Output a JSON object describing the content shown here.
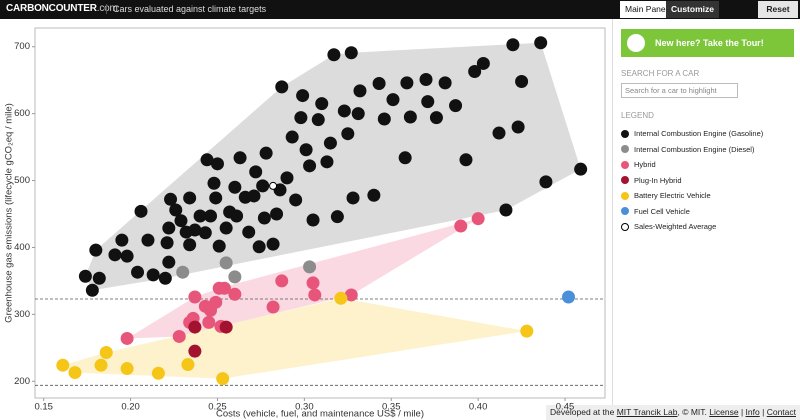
{
  "header": {
    "logo": "CARBONCOUNTER",
    "logo_suffix": ".com",
    "tagline": "Cars evaluated against climate targets"
  },
  "tabs": [
    "Main Panel",
    "Customize"
  ],
  "reset": "Reset",
  "tour_button": "New here? Take the Tour!",
  "search": {
    "label": "SEARCH FOR A CAR",
    "placeholder": "Search for a car to highlight"
  },
  "legend_title": "LEGEND",
  "footer": [
    "Developed at the",
    "MIT Trancik Lab",
    ", © MIT.",
    "License",
    "|",
    "Info",
    "|",
    "Contact"
  ],
  "chart_data": {
    "type": "scatter",
    "x_label": "Costs (vehicle, fuel, and maintenance US$ / mile)",
    "y_label": "Greenhouse gas emissions (lifecycle gCO₂eq / mile)",
    "xlim": [
      0.145,
      0.473
    ],
    "ylim": [
      175,
      728
    ],
    "xticks": [
      0.15,
      {
        "value": 0.2,
        "label": "0.20"
      },
      0.25,
      {
        "value": 0.3,
        "label": "0.30"
      },
      0.35,
      {
        "value": 0.4,
        "label": "0.40"
      },
      0.45
    ],
    "yticks": [
      200,
      300,
      400,
      500,
      600,
      700
    ],
    "hlines": [
      323,
      194
    ],
    "series": [
      {
        "name": "Internal Combustion Engine (Gasoline)",
        "color": "#111111",
        "hull": "#d6d6d6",
        "x": [
          0.174,
          0.178,
          0.18,
          0.182,
          0.191,
          0.195,
          0.198,
          0.204,
          0.21,
          0.206,
          0.213,
          0.22,
          0.222,
          0.221,
          0.222,
          0.226,
          0.223,
          0.229,
          0.234,
          0.232,
          0.234,
          0.237,
          0.24,
          0.243,
          0.246,
          0.249,
          0.248,
          0.25,
          0.244,
          0.251,
          0.255,
          0.257,
          0.26,
          0.261,
          0.263,
          0.266,
          0.268,
          0.271,
          0.272,
          0.274,
          0.276,
          0.277,
          0.278,
          0.282,
          0.284,
          0.286,
          0.287,
          0.29,
          0.293,
          0.295,
          0.298,
          0.299,
          0.301,
          0.303,
          0.305,
          0.308,
          0.31,
          0.313,
          0.315,
          0.317,
          0.319,
          0.323,
          0.325,
          0.327,
          0.328,
          0.331,
          0.332,
          0.34,
          0.343,
          0.346,
          0.351,
          0.358,
          0.359,
          0.361,
          0.37,
          0.371,
          0.376,
          0.381,
          0.387,
          0.393,
          0.398,
          0.403,
          0.412,
          0.416,
          0.42,
          0.423,
          0.425,
          0.436,
          0.439,
          0.459
        ],
        "values": [
          357,
          336,
          396,
          354,
          389,
          411,
          387,
          363,
          411,
          454,
          359,
          354,
          378,
          407,
          429,
          456,
          472,
          440,
          474,
          423,
          404,
          426,
          447,
          422,
          447,
          474,
          496,
          525,
          531,
          402,
          429,
          453,
          490,
          447,
          534,
          475,
          423,
          477,
          513,
          401,
          492,
          444,
          541,
          405,
          450,
          486,
          640,
          504,
          565,
          471,
          594,
          627,
          546,
          522,
          441,
          591,
          615,
          528,
          556,
          688,
          446,
          604,
          570,
          691,
          474,
          600,
          634,
          478,
          645,
          592,
          621,
          534,
          646,
          595,
          651,
          618,
          594,
          646,
          612,
          531,
          663,
          675,
          571,
          456,
          703,
          580,
          648,
          706,
          498,
          517
        ]
      },
      {
        "name": "Internal Combustion Engine (Diesel)",
        "color": "#8c8c8c",
        "x": [
          0.23,
          0.255,
          0.26,
          0.303
        ],
        "values": [
          363,
          377,
          356,
          371
        ]
      },
      {
        "name": "Hybrid",
        "color": "#e8557a",
        "hull": "#f9d2de",
        "x": [
          0.198,
          0.228,
          0.234,
          0.236,
          0.237,
          0.243,
          0.245,
          0.246,
          0.249,
          0.251,
          0.252,
          0.254,
          0.26,
          0.282,
          0.287,
          0.305,
          0.306,
          0.327,
          0.39,
          0.4
        ],
        "values": [
          264,
          267,
          288,
          294,
          326,
          312,
          288,
          306,
          318,
          339,
          282,
          339,
          330,
          311,
          350,
          347,
          329,
          329,
          432,
          443
        ]
      },
      {
        "name": "Plug-In Hybrid",
        "color": "#a3122f",
        "x": [
          0.237,
          0.237,
          0.255
        ],
        "values": [
          245,
          281,
          281
        ]
      },
      {
        "name": "Battery Electric Vehicle",
        "color": "#f5c518",
        "hull": "#fdf0c2",
        "x": [
          0.161,
          0.168,
          0.183,
          0.186,
          0.198,
          0.216,
          0.233,
          0.253,
          0.321,
          0.428
        ],
        "values": [
          224,
          213,
          224,
          243,
          219,
          212,
          225,
          204,
          324,
          275
        ]
      },
      {
        "name": "Fuel Cell Vehicle",
        "color": "#4a90d9",
        "x": [
          0.452
        ],
        "values": [
          326
        ]
      },
      {
        "name": "Sales-Weighted Average",
        "color": "#ffffff",
        "edge_color": "#000000",
        "x": [
          0.282
        ],
        "values": [
          492
        ]
      }
    ]
  }
}
